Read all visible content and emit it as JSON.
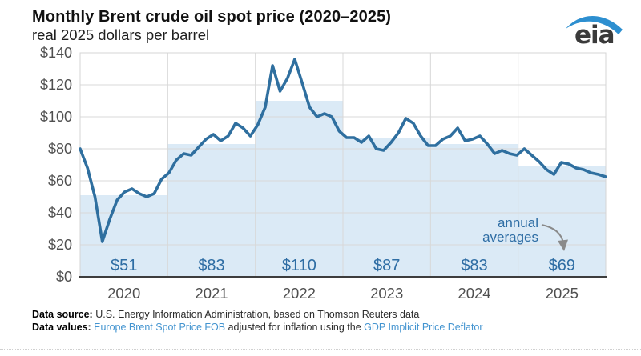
{
  "header": {
    "title": "Monthly Brent crude oil spot price (2020–2025)",
    "subtitle": "real 2025 dollars per barrel",
    "logo_text": "eia"
  },
  "chart_data": {
    "type": "line",
    "title": "Monthly Brent crude oil spot price (2020–2025)",
    "ylabel": "real 2025 dollars per barrel",
    "ylim": [
      0,
      140
    ],
    "y_ticks": [
      0,
      20,
      40,
      60,
      80,
      100,
      120,
      140
    ],
    "y_tick_prefix": "$",
    "grid": true,
    "legend": false,
    "x_years": [
      "2020",
      "2021",
      "2022",
      "2023",
      "2024",
      "2025"
    ],
    "series": [
      {
        "name": "monthly Brent crude oil spot price (real 2025 dollars per barrel)",
        "values": [
          80,
          68,
          50,
          22,
          36,
          48,
          53,
          55,
          52,
          50,
          52,
          61,
          65,
          73,
          77,
          76,
          81,
          86,
          89,
          85,
          88,
          96,
          93,
          88,
          95,
          106,
          132,
          116,
          124,
          136,
          121,
          106,
          100,
          102,
          100,
          91,
          87,
          87,
          84,
          88,
          80,
          79,
          84,
          90,
          99,
          96,
          88,
          82,
          82,
          86,
          88,
          93,
          85,
          86,
          88,
          83,
          77,
          79,
          77,
          76,
          80,
          76,
          72,
          67,
          64,
          71.5,
          70.5,
          68,
          67,
          65,
          64,
          62.5
        ]
      },
      {
        "name": "annual averages (stepped area)",
        "values": [
          51,
          83,
          110,
          87,
          83,
          69
        ],
        "labels": [
          "$51",
          "$83",
          "$110",
          "$87",
          "$83",
          "$69"
        ]
      }
    ],
    "annotation_line1": "annual",
    "annotation_line2": "averages",
    "colors": {
      "line": "#2f6f9f",
      "band_fill": "#dbeaf6",
      "band_label": "#2e6da4",
      "annotation_text": "#2e6da4",
      "arrow": "#8a8a8a",
      "grid": "#d8d8d8",
      "border": "#d4d4d4",
      "axis": "#3d3d3d",
      "tick_text": "#4f4f4f",
      "logo_swoosh": "#2d8fd0"
    }
  },
  "footer": {
    "source_label": "Data source: ",
    "source_text": "U.S. Energy Information Administration, based on Thomson Reuters data",
    "values_label": "Data values: ",
    "values_link1": "Europe Brent Spot Price FOB",
    "values_middle": " adjusted for inflation using the ",
    "values_link2": "GDP Implicit Price Deflator"
  }
}
